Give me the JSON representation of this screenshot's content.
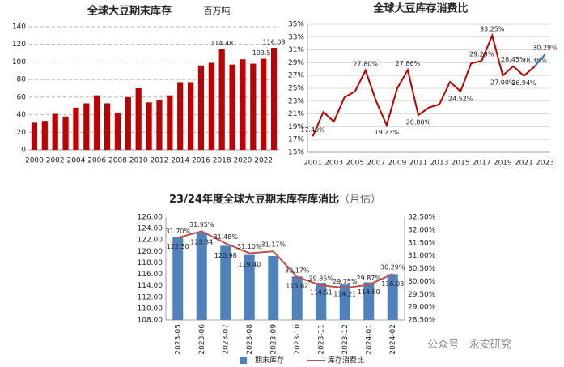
{
  "chart_data": [
    {
      "type": "bar",
      "title": "全球大豆期末库存",
      "subtitle": "百万吨",
      "categories": [
        "2000",
        null,
        "2002",
        null,
        "2004",
        null,
        "2006",
        null,
        "2008",
        null,
        "2010",
        null,
        "2012",
        null,
        "2014",
        null,
        "2016",
        null,
        "2018",
        null,
        "2020",
        null,
        "2022",
        null
      ],
      "values": [
        31,
        33,
        41,
        38,
        48,
        53,
        62,
        53,
        42,
        60,
        70,
        54,
        57,
        62,
        77,
        77,
        96,
        99,
        114.48,
        97,
        103,
        98,
        103.57,
        116.03
      ],
      "value_labels": [
        null,
        null,
        null,
        null,
        null,
        null,
        null,
        null,
        null,
        null,
        null,
        null,
        null,
        null,
        null,
        null,
        null,
        null,
        "114.48",
        null,
        null,
        null,
        "103.57",
        "116.03"
      ],
      "color": "#c00000",
      "ylim": [
        0,
        140
      ],
      "yticks": [
        0,
        20,
        40,
        60,
        80,
        100,
        120,
        140
      ],
      "grid": true
    },
    {
      "type": "line",
      "title": "全球大豆库存消费比",
      "categories": [
        "2001",
        null,
        "2003",
        null,
        "2005",
        null,
        "2007",
        null,
        "2009",
        null,
        "2011",
        null,
        "2013",
        null,
        "2015",
        null,
        "2017",
        null,
        "2019",
        null,
        "2021",
        null,
        "2023"
      ],
      "series": [
        {
          "color": "#c00000",
          "values": [
            17.49,
            21.3,
            19.8,
            23.6,
            24.5,
            27.8,
            23.0,
            19.23,
            25.0,
            27.86,
            20.8,
            22.0,
            22.5,
            26.0,
            24.52,
            28.9,
            29.29,
            33.25,
            27.0,
            28.45,
            26.94,
            28.38,
            null
          ],
          "value_labels": [
            "17.49%",
            null,
            null,
            null,
            null,
            "27.80%",
            null,
            "19.23%",
            null,
            "27.86%",
            "20.80%",
            null,
            null,
            null,
            "24.52%",
            null,
            "29.29%",
            "33.25%",
            "27.00%",
            "28.45%",
            "26.94%",
            "28.38%",
            null
          ]
        },
        {
          "color": "#2e75b6",
          "values": [
            null,
            null,
            null,
            null,
            null,
            null,
            null,
            null,
            null,
            null,
            null,
            null,
            null,
            null,
            null,
            null,
            null,
            null,
            null,
            null,
            null,
            28.38,
            30.29
          ],
          "value_labels": [
            null,
            null,
            null,
            null,
            null,
            null,
            null,
            null,
            null,
            null,
            null,
            null,
            null,
            null,
            null,
            null,
            null,
            null,
            null,
            null,
            null,
            null,
            "30.29%"
          ]
        }
      ],
      "ylim": [
        15,
        35
      ],
      "yticks": [
        {
          "value": 15,
          "label": "15%"
        },
        {
          "value": 17,
          "label": "17%"
        },
        {
          "value": 19,
          "label": "19%"
        },
        {
          "value": 21,
          "label": "21%"
        },
        {
          "value": 23,
          "label": "23%"
        },
        {
          "value": 25,
          "label": "25%"
        },
        {
          "value": 27,
          "label": "27%"
        },
        {
          "value": 29,
          "label": "29%"
        },
        {
          "value": 31,
          "label": "31%"
        },
        {
          "value": 33,
          "label": "33%"
        },
        {
          "value": 35,
          "label": "35%"
        }
      ],
      "grid": true
    },
    {
      "type": "combo",
      "title": "23/24年度全球大豆期末库存库消比",
      "subtitle": "（月估）",
      "categories": [
        "2023-05",
        "2023-06",
        "2023-07",
        "2023-08",
        "2023-09",
        "2023-10",
        "2023-11",
        "2023-12",
        "2024-01",
        "2024-02"
      ],
      "series": [
        {
          "name": "期末库存",
          "color": "#4f81bd",
          "values": [
            122.5,
            123.34,
            120.98,
            119.4,
            119.2,
            115.62,
            114.51,
            114.21,
            114.6,
            116.03
          ],
          "value_labels": [
            "122.50",
            "123.34",
            "120.98",
            "119.40",
            null,
            "115.62",
            "114.51",
            "114.21",
            "114.60",
            "116.03"
          ]
        },
        {
          "name": "库存消费比",
          "color": "#c0504d",
          "axis": "y2",
          "values": [
            31.7,
            31.95,
            31.48,
            31.1,
            31.17,
            30.17,
            29.85,
            29.75,
            29.87,
            30.29
          ],
          "value_labels": [
            "31.70%",
            "31.95%",
            "31.48%",
            "31.10%",
            "31.17%",
            "30.17%",
            "29.85%",
            "29.75%",
            "29.87%",
            "30.29%"
          ]
        }
      ],
      "ylim": [
        108,
        126
      ],
      "yticks": [
        {
          "value": 108,
          "label": "108.00"
        },
        {
          "value": 110,
          "label": "110.00"
        },
        {
          "value": 112,
          "label": "112.00"
        },
        {
          "value": 114,
          "label": "114.00"
        },
        {
          "value": 116,
          "label": "116.00"
        },
        {
          "value": 118,
          "label": "118.00"
        },
        {
          "value": 120,
          "label": "120.00"
        },
        {
          "value": 122,
          "label": "122.00"
        },
        {
          "value": 124,
          "label": "124.00"
        },
        {
          "value": 126,
          "label": "126.00"
        }
      ],
      "y2lim": [
        28.5,
        32.5
      ],
      "y2ticks": [
        {
          "value": 28.5,
          "label": "28.50%"
        },
        {
          "value": 29,
          "label": "29.00%"
        },
        {
          "value": 29.5,
          "label": "29.50%"
        },
        {
          "value": 30,
          "label": "30.00%"
        },
        {
          "value": 30.5,
          "label": "30.50%"
        },
        {
          "value": 31,
          "label": "31.00%"
        },
        {
          "value": 31.5,
          "label": "31.50%"
        },
        {
          "value": 32,
          "label": "32.00%"
        },
        {
          "value": 32.5,
          "label": "32.50%"
        }
      ],
      "grid": false,
      "legend": "bottom"
    }
  ],
  "watermark": "公众号 · 永安研究"
}
